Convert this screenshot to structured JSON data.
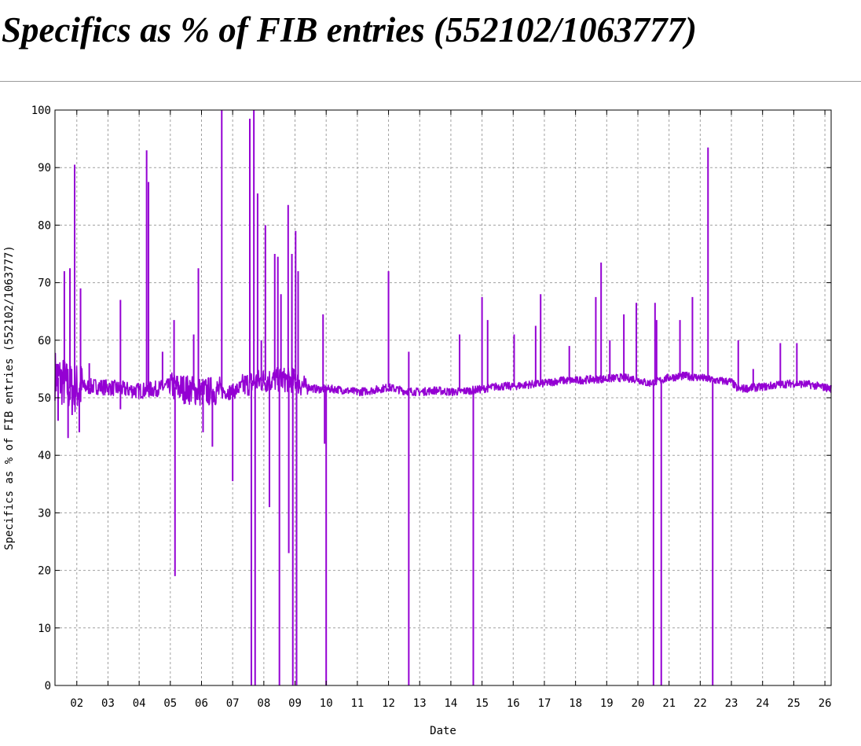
{
  "title": "Specifics as % of FIB entries (552102/1063777)",
  "colors": {
    "series": "#9400D3",
    "grid": "#a0a0a0",
    "axis": "#000000",
    "background": "#ffffff"
  },
  "chart_data": {
    "type": "line",
    "title": "",
    "xlabel": "Date",
    "ylabel": "Specifics as % of FIB entries (552102/1063777)",
    "xlim": [
      1.3,
      26.2
    ],
    "ylim": [
      0,
      100
    ],
    "x_ticks": [
      "02",
      "03",
      "04",
      "05",
      "06",
      "07",
      "08",
      "09",
      "10",
      "11",
      "12",
      "13",
      "14",
      "15",
      "16",
      "17",
      "18",
      "19",
      "20",
      "21",
      "22",
      "23",
      "24",
      "25",
      "26"
    ],
    "y_ticks": [
      0,
      10,
      20,
      30,
      40,
      50,
      60,
      70,
      80,
      90,
      100
    ],
    "grid": true,
    "legend": "none",
    "series": [
      {
        "baseline": [
          [
            1.3,
            54
          ],
          [
            1.5,
            53
          ],
          [
            1.8,
            51.5
          ],
          [
            2.2,
            51.8
          ],
          [
            2.6,
            52
          ],
          [
            3.0,
            51.8
          ],
          [
            3.5,
            51.5
          ],
          [
            4.0,
            51.2
          ],
          [
            4.5,
            51.5
          ],
          [
            5.0,
            52
          ],
          [
            5.5,
            51.5
          ],
          [
            6.0,
            51
          ],
          [
            6.5,
            51.2
          ],
          [
            7.0,
            51
          ],
          [
            7.5,
            52.5
          ],
          [
            8.0,
            53
          ],
          [
            8.5,
            53.2
          ],
          [
            9.0,
            53
          ],
          [
            9.3,
            52
          ],
          [
            9.7,
            51.5
          ],
          [
            10.3,
            51.5
          ],
          [
            11.0,
            51
          ],
          [
            11.5,
            51.3
          ],
          [
            12.0,
            51.8
          ],
          [
            12.5,
            51.2
          ],
          [
            13.0,
            51
          ],
          [
            13.5,
            51.3
          ],
          [
            14.0,
            51
          ],
          [
            14.5,
            51.2
          ],
          [
            15.0,
            51.5
          ],
          [
            15.5,
            52
          ],
          [
            16.0,
            52
          ],
          [
            16.5,
            52.3
          ],
          [
            17.0,
            52.5
          ],
          [
            17.5,
            53
          ],
          [
            18.0,
            53
          ],
          [
            18.5,
            53.2
          ],
          [
            19.0,
            53.3
          ],
          [
            19.5,
            53.5
          ],
          [
            20.0,
            53.2
          ],
          [
            20.3,
            52.5
          ],
          [
            20.6,
            52.8
          ],
          [
            21.0,
            53.5
          ],
          [
            21.5,
            53.8
          ],
          [
            22.0,
            53.5
          ],
          [
            22.5,
            53
          ],
          [
            23.0,
            52.8
          ],
          [
            23.2,
            51.5
          ],
          [
            23.8,
            51.8
          ],
          [
            24.2,
            52
          ],
          [
            24.5,
            52.3
          ],
          [
            25.0,
            52.5
          ],
          [
            25.5,
            52.3
          ],
          [
            26.0,
            51.8
          ],
          [
            26.2,
            51.6
          ]
        ],
        "spikes": [
          [
            1.4,
            46
          ],
          [
            1.6,
            72
          ],
          [
            1.72,
            43
          ],
          [
            1.78,
            72.5
          ],
          [
            1.85,
            47
          ],
          [
            1.93,
            90.5
          ],
          [
            2.08,
            44
          ],
          [
            2.12,
            69
          ],
          [
            2.4,
            56
          ],
          [
            3.4,
            67
          ],
          [
            3.4,
            48
          ],
          [
            4.24,
            93
          ],
          [
            4.3,
            87.5
          ],
          [
            4.75,
            58
          ],
          [
            5.12,
            63.5
          ],
          [
            5.15,
            19
          ],
          [
            5.75,
            61
          ],
          [
            5.9,
            72.5
          ],
          [
            6.05,
            44
          ],
          [
            6.35,
            41.5
          ],
          [
            6.65,
            100
          ],
          [
            7.0,
            35.5
          ],
          [
            7.55,
            98.5
          ],
          [
            7.6,
            0
          ],
          [
            7.68,
            100
          ],
          [
            7.72,
            0
          ],
          [
            7.8,
            85.5
          ],
          [
            7.92,
            60
          ],
          [
            8.05,
            80
          ],
          [
            8.18,
            31
          ],
          [
            8.35,
            75
          ],
          [
            8.45,
            74.5
          ],
          [
            8.5,
            0
          ],
          [
            8.55,
            68
          ],
          [
            8.78,
            83.5
          ],
          [
            8.8,
            23
          ],
          [
            8.9,
            75
          ],
          [
            8.93,
            0
          ],
          [
            9.02,
            79
          ],
          [
            9.05,
            0
          ],
          [
            9.1,
            72
          ],
          [
            9.9,
            64.5
          ],
          [
            9.95,
            42
          ],
          [
            10.0,
            0
          ],
          [
            12.0,
            72
          ],
          [
            12.65,
            58
          ],
          [
            12.65,
            0
          ],
          [
            14.28,
            61
          ],
          [
            14.72,
            0
          ],
          [
            15.0,
            67.5
          ],
          [
            15.18,
            63.5
          ],
          [
            16.03,
            61
          ],
          [
            16.72,
            62.5
          ],
          [
            16.88,
            68
          ],
          [
            17.8,
            59
          ],
          [
            18.65,
            67.5
          ],
          [
            18.82,
            73.5
          ],
          [
            19.1,
            60
          ],
          [
            19.55,
            64.5
          ],
          [
            19.95,
            66.5
          ],
          [
            20.5,
            0
          ],
          [
            20.55,
            66.5
          ],
          [
            20.6,
            63.5
          ],
          [
            20.75,
            0
          ],
          [
            21.35,
            63.5
          ],
          [
            21.75,
            67.5
          ],
          [
            22.25,
            93.5
          ],
          [
            22.4,
            0
          ],
          [
            23.22,
            60
          ],
          [
            23.7,
            55
          ],
          [
            24.57,
            59.5
          ],
          [
            25.1,
            59.5
          ]
        ]
      }
    ]
  }
}
